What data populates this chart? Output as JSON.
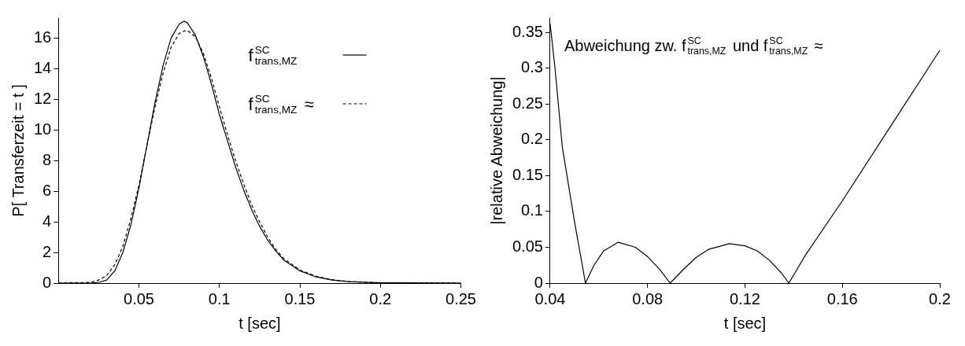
{
  "chart_data": [
    {
      "type": "line",
      "xlabel": "t [sec]",
      "ylabel": "P[ Transferzeit = t ]",
      "xlim": [
        0,
        0.25
      ],
      "ylim": [
        0,
        17.3
      ],
      "xticks": [
        0.05,
        0.1,
        0.15,
        0.2,
        0.25
      ],
      "yticks": [
        0,
        2,
        4,
        6,
        8,
        10,
        12,
        14,
        16
      ],
      "grid": false,
      "legend": "top right",
      "marker": "none",
      "x": [
        0,
        0.02,
        0.025,
        0.03,
        0.035,
        0.04,
        0.045,
        0.05,
        0.055,
        0.06,
        0.065,
        0.07,
        0.075,
        0.078,
        0.08,
        0.085,
        0.09,
        0.095,
        0.1,
        0.105,
        0.11,
        0.115,
        0.12,
        0.125,
        0.13,
        0.135,
        0.14,
        0.15,
        0.16,
        0.17,
        0.18,
        0.2,
        0.25
      ],
      "series": [
        {
          "name": "f$^{SC}$$_{trans,MZ}$",
          "color": "#000000",
          "line_style": "solid",
          "values": [
            0,
            0,
            0.05,
            0.2,
            0.8,
            2,
            3.8,
            6.2,
            9,
            11.8,
            14.2,
            16,
            16.9,
            17.1,
            17,
            16.2,
            14.8,
            13,
            11,
            9.3,
            7.6,
            6.1,
            4.8,
            3.7,
            2.8,
            2.1,
            1.5,
            0.8,
            0.4,
            0.2,
            0.1,
            0.02,
            0
          ]
        },
        {
          "name": "f$^{SC}$$_{trans,MZ}$ ≈",
          "color": "#000000",
          "line_style": "dashed",
          "values": [
            0,
            0.05,
            0.2,
            0.5,
            1.2,
            2.4,
            4.2,
            6.4,
            9,
            11.5,
            13.7,
            15.4,
            16.3,
            16.45,
            16.5,
            16.1,
            15,
            13.4,
            11.5,
            9.7,
            8,
            6.5,
            5.1,
            4,
            3,
            2.2,
            1.6,
            0.85,
            0.45,
            0.22,
            0.1,
            0.02,
            0
          ]
        }
      ]
    },
    {
      "type": "line",
      "xlabel": "t [sec]",
      "ylabel": "|relative Abweichung|",
      "xlim": [
        0.04,
        0.2
      ],
      "ylim": [
        0,
        0.37
      ],
      "xticks": [
        0.04,
        0.08,
        0.12,
        0.16,
        0.2
      ],
      "yticks": [
        0,
        0.05,
        0.1,
        0.15,
        0.2,
        0.25,
        0.3,
        0.35
      ],
      "grid": false,
      "marker": "none",
      "line_style": "solid",
      "annotations": [
        "Abweichung zw. f$^{SC}$$_{trans,MZ}$ und f$^{SC}$$_{trans,MZ}$ ≈"
      ],
      "x": [
        0.04,
        0.042,
        0.045,
        0.05,
        0.0545,
        0.058,
        0.062,
        0.068,
        0.075,
        0.08,
        0.085,
        0.0893,
        0.095,
        0.1,
        0.105,
        0.1136,
        0.12,
        0.125,
        0.13,
        0.135,
        0.138,
        0.145,
        0.16,
        0.18,
        0.2
      ],
      "series": [
        {
          "color": "#000000",
          "values": [
            0.362,
            0.3,
            0.19,
            0.086,
            0,
            0.025,
            0.045,
            0.057,
            0.05,
            0.037,
            0.019,
            0,
            0.02,
            0.036,
            0.047,
            0.055,
            0.052,
            0.045,
            0.032,
            0.014,
            0,
            0.04,
            0.115,
            0.22,
            0.325
          ]
        }
      ]
    }
  ]
}
